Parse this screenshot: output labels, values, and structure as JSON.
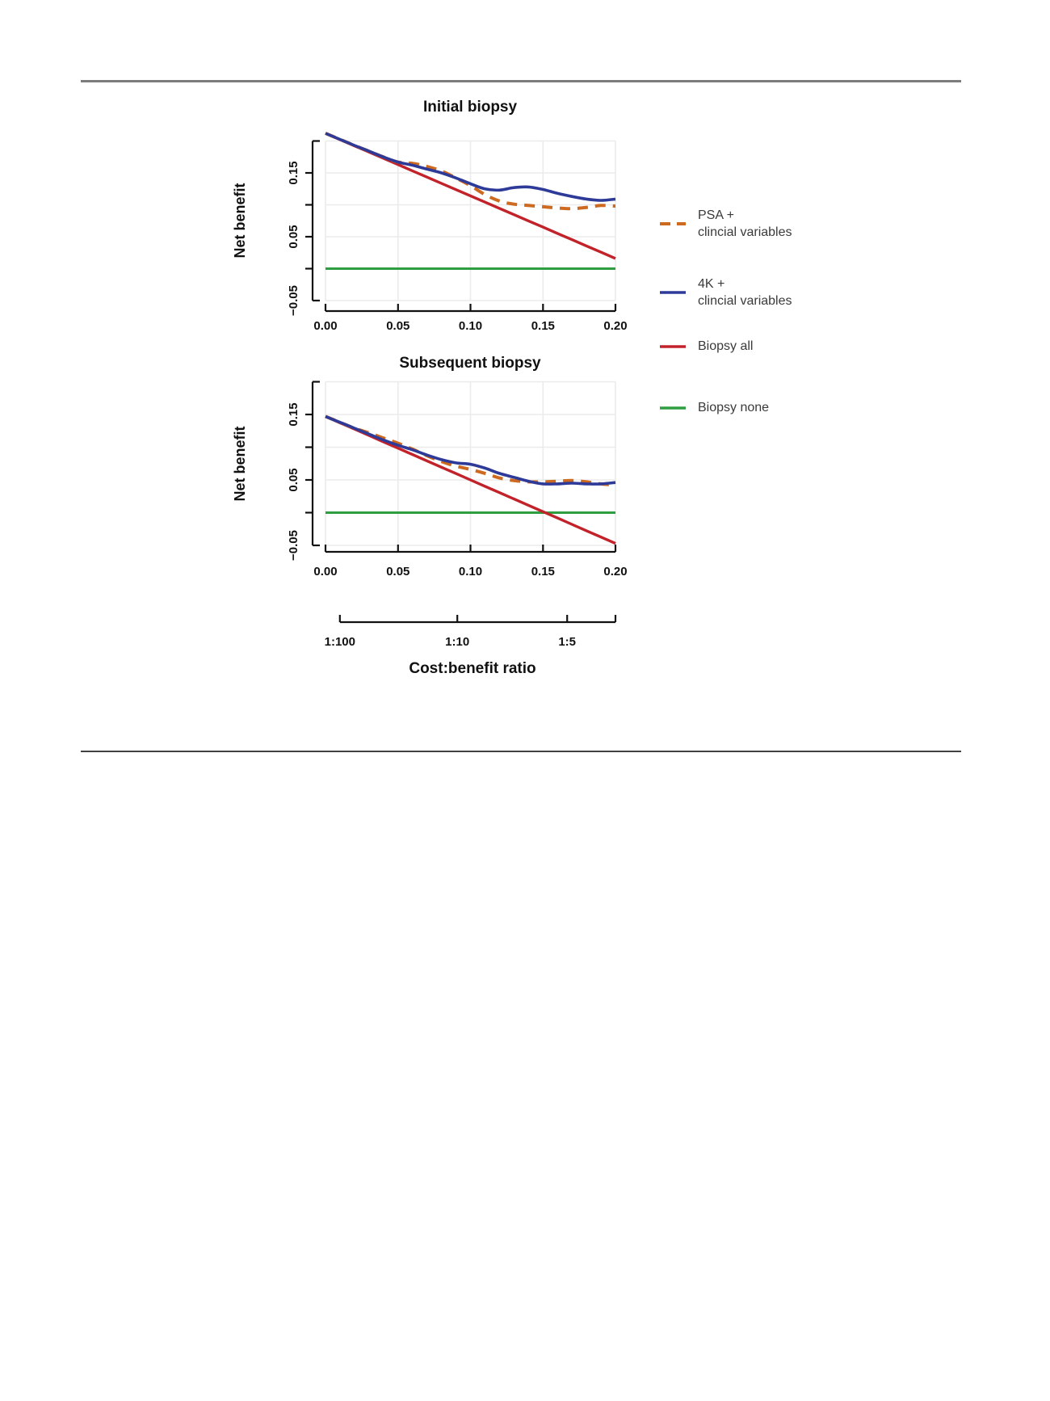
{
  "colors": {
    "psa": "#CE6A1F",
    "fourk": "#2E3A97",
    "biopsy_all": "#C2222A",
    "biopsy_none": "#2E9E41"
  },
  "legend": {
    "items": [
      {
        "key": "psa",
        "label_line1": "PSA +",
        "label_line2": "clincial variables"
      },
      {
        "key": "fourk",
        "label_line1": "4K +",
        "label_line2": "clincial variables"
      },
      {
        "key": "biopsy_all",
        "label_line1": "Biopsy all",
        "label_line2": ""
      },
      {
        "key": "biopsy_none",
        "label_line1": "Biopsy none",
        "label_line2": ""
      }
    ]
  },
  "chart_data": [
    {
      "type": "line",
      "title": "Initial biopsy",
      "xlabel": "",
      "ylabel": "Net benefit",
      "xlim": [
        0,
        0.2
      ],
      "ylim": [
        -0.05,
        0.2
      ],
      "grid": true,
      "legend_position": "right",
      "x_ticks": [
        {
          "v": 0.0,
          "label": "0.00"
        },
        {
          "v": 0.05,
          "label": "0.05"
        },
        {
          "v": 0.1,
          "label": "0.10"
        },
        {
          "v": 0.15,
          "label": "0.15"
        },
        {
          "v": 0.2,
          "label": "0.20"
        }
      ],
      "y_ticks": [
        {
          "v": 0.2,
          "label": ""
        },
        {
          "v": 0.15,
          "label": "0.15"
        },
        {
          "v": 0.1,
          "label": ""
        },
        {
          "v": 0.05,
          "label": "0.05"
        },
        {
          "v": 0.0,
          "label": ""
        },
        {
          "v": -0.05,
          "label": "−0.05"
        }
      ],
      "x": [
        0,
        0.01,
        0.02,
        0.03,
        0.04,
        0.05,
        0.06,
        0.07,
        0.08,
        0.09,
        0.1,
        0.11,
        0.12,
        0.13,
        0.14,
        0.15,
        0.16,
        0.17,
        0.18,
        0.19,
        0.2
      ],
      "series": [
        {
          "key": "psa",
          "name": "PSA + clincial variables",
          "values": [
            0.212,
            0.2025,
            0.193,
            0.184,
            0.175,
            0.167,
            0.165,
            0.16,
            0.153,
            0.142,
            0.13,
            0.116,
            0.106,
            0.101,
            0.099,
            0.097,
            0.095,
            0.094,
            0.096,
            0.099,
            0.098
          ]
        },
        {
          "key": "fourk",
          "name": "4K + clincial variables",
          "values": [
            0.212,
            0.2025,
            0.193,
            0.184,
            0.175,
            0.167,
            0.162,
            0.156,
            0.15,
            0.142,
            0.133,
            0.125,
            0.123,
            0.127,
            0.128,
            0.124,
            0.118,
            0.113,
            0.109,
            0.107,
            0.109
          ]
        },
        {
          "key": "biopsy_all",
          "name": "Biopsy all",
          "values": [
            0.212,
            0.2022,
            0.1924,
            0.1826,
            0.1728,
            0.163,
            0.1532,
            0.1434,
            0.1336,
            0.1238,
            0.114,
            0.1042,
            0.0944,
            0.0846,
            0.0748,
            0.065,
            0.0552,
            0.0454,
            0.0356,
            0.0258,
            0.016
          ]
        },
        {
          "key": "biopsy_none",
          "name": "Biopsy none",
          "values": [
            0,
            0,
            0,
            0,
            0,
            0,
            0,
            0,
            0,
            0,
            0,
            0,
            0,
            0,
            0,
            0,
            0,
            0,
            0,
            0,
            0
          ]
        }
      ]
    },
    {
      "type": "line",
      "title": "Subsequent biopsy",
      "xlabel": "",
      "ylabel": "Net benefit",
      "xlim": [
        0,
        0.2
      ],
      "ylim": [
        -0.05,
        0.2
      ],
      "grid": true,
      "legend_position": "right",
      "x_ticks": [
        {
          "v": 0.0,
          "label": "0.00"
        },
        {
          "v": 0.05,
          "label": "0.05"
        },
        {
          "v": 0.1,
          "label": "0.10"
        },
        {
          "v": 0.15,
          "label": "0.15"
        },
        {
          "v": 0.2,
          "label": "0.20"
        }
      ],
      "y_ticks": [
        {
          "v": 0.2,
          "label": ""
        },
        {
          "v": 0.15,
          "label": "0.15"
        },
        {
          "v": 0.1,
          "label": ""
        },
        {
          "v": 0.05,
          "label": "0.05"
        },
        {
          "v": 0.0,
          "label": ""
        },
        {
          "v": -0.05,
          "label": "−0.05"
        }
      ],
      "x": [
        0,
        0.01,
        0.02,
        0.03,
        0.04,
        0.05,
        0.06,
        0.07,
        0.08,
        0.09,
        0.1,
        0.11,
        0.12,
        0.13,
        0.14,
        0.15,
        0.16,
        0.17,
        0.18,
        0.19,
        0.2
      ],
      "series": [
        {
          "key": "psa",
          "name": "PSA + clincial variables",
          "values": [
            0.147,
            0.138,
            0.129,
            0.122,
            0.114,
            0.106,
            0.097,
            0.087,
            0.078,
            0.071,
            0.066,
            0.06,
            0.053,
            0.049,
            0.047,
            0.047,
            0.048,
            0.049,
            0.047,
            0.044,
            0.042
          ]
        },
        {
          "key": "fourk",
          "name": "4K + clincial variables",
          "values": [
            0.147,
            0.138,
            0.129,
            0.12,
            0.111,
            0.103,
            0.096,
            0.088,
            0.081,
            0.076,
            0.074,
            0.068,
            0.06,
            0.054,
            0.048,
            0.044,
            0.044,
            0.045,
            0.044,
            0.044,
            0.046
          ]
        },
        {
          "key": "biopsy_all",
          "name": "Biopsy all",
          "values": [
            0.147,
            0.1373,
            0.1276,
            0.1179,
            0.1082,
            0.0985,
            0.0888,
            0.0791,
            0.0694,
            0.0597,
            0.05,
            0.0403,
            0.0306,
            0.0209,
            0.0112,
            0.0015,
            -0.0082,
            -0.0179,
            -0.0276,
            -0.0373,
            -0.047
          ]
        },
        {
          "key": "biopsy_none",
          "name": "Biopsy none",
          "values": [
            0,
            0,
            0,
            0,
            0,
            0,
            0,
            0,
            0,
            0,
            0,
            0,
            0,
            0,
            0,
            0,
            0,
            0,
            0,
            0,
            0
          ]
        }
      ]
    }
  ],
  "cost_axis": {
    "label": "Cost:benefit ratio",
    "ticks": [
      {
        "ratio": "1:100",
        "threshold": 0.0099
      },
      {
        "ratio": "1:10",
        "threshold": 0.0909
      },
      {
        "ratio": "1:5",
        "threshold": 0.1667
      }
    ]
  }
}
